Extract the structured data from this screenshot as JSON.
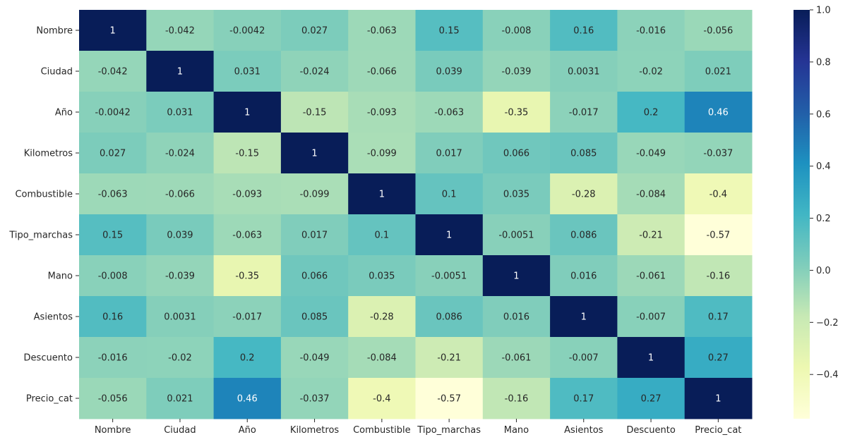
{
  "chart_data": {
    "type": "heatmap",
    "title": "",
    "xlabel": "",
    "ylabel": "",
    "rows": [
      "Nombre",
      "Ciudad",
      "Año",
      "Kilometros",
      "Combustible",
      "Tipo_marchas",
      "Mano",
      "Asientos",
      "Descuento",
      "Precio_cat"
    ],
    "columns": [
      "Nombre",
      "Ciudad",
      "Año",
      "Kilometros",
      "Combustible",
      "Tipo_marchas",
      "Mano",
      "Asientos",
      "Descuento",
      "Precio_cat"
    ],
    "values": [
      [
        1,
        -0.042,
        -0.0042,
        0.027,
        -0.063,
        0.15,
        -0.008,
        0.16,
        -0.016,
        -0.056
      ],
      [
        -0.042,
        1,
        0.031,
        -0.024,
        -0.066,
        0.039,
        -0.039,
        0.0031,
        -0.02,
        0.021
      ],
      [
        -0.0042,
        0.031,
        1,
        -0.15,
        -0.093,
        -0.063,
        -0.35,
        -0.017,
        0.2,
        0.46
      ],
      [
        0.027,
        -0.024,
        -0.15,
        1,
        -0.099,
        0.017,
        0.066,
        0.085,
        -0.049,
        -0.037
      ],
      [
        -0.063,
        -0.066,
        -0.093,
        -0.099,
        1,
        0.1,
        0.035,
        -0.28,
        -0.084,
        -0.4
      ],
      [
        0.15,
        0.039,
        -0.063,
        0.017,
        0.1,
        1,
        -0.0051,
        0.086,
        -0.21,
        -0.57
      ],
      [
        -0.008,
        -0.039,
        -0.35,
        0.066,
        0.035,
        -0.0051,
        1,
        0.016,
        -0.061,
        -0.16
      ],
      [
        0.16,
        0.0031,
        -0.017,
        0.085,
        -0.28,
        0.086,
        0.016,
        1,
        -0.007,
        0.17
      ],
      [
        -0.016,
        -0.02,
        0.2,
        -0.049,
        -0.084,
        -0.21,
        -0.061,
        -0.007,
        1,
        0.27
      ],
      [
        -0.056,
        0.021,
        0.46,
        -0.037,
        -0.4,
        -0.57,
        -0.16,
        0.17,
        0.27,
        1
      ]
    ],
    "cell_labels": [
      [
        "1",
        "-0.042",
        "-0.0042",
        "0.027",
        "-0.063",
        "0.15",
        "-0.008",
        "0.16",
        "-0.016",
        "-0.056"
      ],
      [
        "-0.042",
        "1",
        "0.031",
        "-0.024",
        "-0.066",
        "0.039",
        "-0.039",
        "0.0031",
        "-0.02",
        "0.021"
      ],
      [
        "-0.0042",
        "0.031",
        "1",
        "-0.15",
        "-0.093",
        "-0.063",
        "-0.35",
        "-0.017",
        "0.2",
        "0.46"
      ],
      [
        "0.027",
        "-0.024",
        "-0.15",
        "1",
        "-0.099",
        "0.017",
        "0.066",
        "0.085",
        "-0.049",
        "-0.037"
      ],
      [
        "-0.063",
        "-0.066",
        "-0.093",
        "-0.099",
        "1",
        "0.1",
        "0.035",
        "-0.28",
        "-0.084",
        "-0.4"
      ],
      [
        "0.15",
        "0.039",
        "-0.063",
        "0.017",
        "0.1",
        "1",
        "-0.0051",
        "0.086",
        "-0.21",
        "-0.57"
      ],
      [
        "-0.008",
        "-0.039",
        "-0.35",
        "0.066",
        "0.035",
        "-0.0051",
        "1",
        "0.016",
        "-0.061",
        "-0.16"
      ],
      [
        "0.16",
        "0.0031",
        "-0.017",
        "0.085",
        "-0.28",
        "0.086",
        "0.016",
        "1",
        "-0.007",
        "0.17"
      ],
      [
        "-0.016",
        "-0.02",
        "0.2",
        "-0.049",
        "-0.084",
        "-0.21",
        "-0.061",
        "-0.007",
        "1",
        "0.27"
      ],
      [
        "-0.056",
        "0.021",
        "0.46",
        "-0.037",
        "-0.4",
        "-0.57",
        "-0.16",
        "0.17",
        "0.27",
        "1"
      ]
    ],
    "colorbar": {
      "vmin": -0.57,
      "vmax": 1.0,
      "ticks": [
        1.0,
        0.8,
        0.6,
        0.4,
        0.2,
        0.0,
        -0.2,
        -0.4
      ],
      "tick_labels": [
        "1.0",
        "0.8",
        "0.6",
        "0.4",
        "0.2",
        "0.0",
        "−0.2",
        "−0.4"
      ],
      "colormap": "YlGnBu",
      "colors": [
        "#ffffd9",
        "#edf8b1",
        "#c7e9b4",
        "#7fcdbb",
        "#41b6c4",
        "#1d91c0",
        "#225ea8",
        "#253494",
        "#081d58"
      ]
    },
    "grid": false,
    "legend": "colorbar-right"
  }
}
